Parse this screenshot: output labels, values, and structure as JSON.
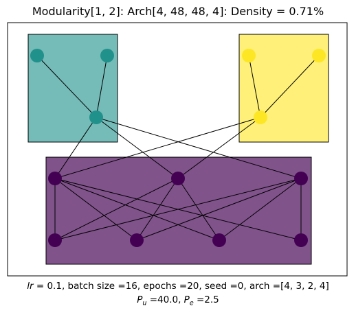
{
  "title": "Modularity[1, 2]: Arch[4, 48, 48, 4]: Density = 0.71%",
  "caption": {
    "lr_symbol": "lr",
    "line1_rest": " =  0.1, batch size =16, epochs =20, seed =0, arch =[4, 3, 2, 4]",
    "pu_symbol": "P",
    "pu_sub": "u",
    "pu_rest": " =40.0, ",
    "pe_symbol": "P",
    "pe_sub": "e",
    "pe_rest": " =2.5"
  },
  "colors": {
    "module_left": "#21918c",
    "module_right": "#fde725",
    "module_bottom": "#440154",
    "edge": "#000000"
  },
  "graph": {
    "nodes": [
      {
        "id": "L1",
        "module": "left"
      },
      {
        "id": "L2",
        "module": "left"
      },
      {
        "id": "L3",
        "module": "left"
      },
      {
        "id": "R1",
        "module": "right"
      },
      {
        "id": "R2",
        "module": "right"
      },
      {
        "id": "R3",
        "module": "right"
      },
      {
        "id": "B1",
        "module": "bottom"
      },
      {
        "id": "B2",
        "module": "bottom"
      },
      {
        "id": "B3",
        "module": "bottom"
      },
      {
        "id": "B4",
        "module": "bottom"
      },
      {
        "id": "B5",
        "module": "bottom"
      },
      {
        "id": "B6",
        "module": "bottom"
      },
      {
        "id": "B7",
        "module": "bottom"
      }
    ],
    "edges": [
      [
        "L1",
        "L3"
      ],
      [
        "L2",
        "L3"
      ],
      [
        "R1",
        "R3"
      ],
      [
        "R2",
        "R3"
      ],
      [
        "L3",
        "B1"
      ],
      [
        "L3",
        "B2"
      ],
      [
        "L3",
        "B3"
      ],
      [
        "R3",
        "B1"
      ],
      [
        "R3",
        "B2"
      ],
      [
        "B1",
        "B4"
      ],
      [
        "B1",
        "B5"
      ],
      [
        "B1",
        "B6"
      ],
      [
        "B1",
        "B7"
      ],
      [
        "B2",
        "B4"
      ],
      [
        "B2",
        "B5"
      ],
      [
        "B2",
        "B6"
      ],
      [
        "B3",
        "B4"
      ],
      [
        "B3",
        "B5"
      ],
      [
        "B3",
        "B6"
      ],
      [
        "B3",
        "B7"
      ]
    ]
  }
}
